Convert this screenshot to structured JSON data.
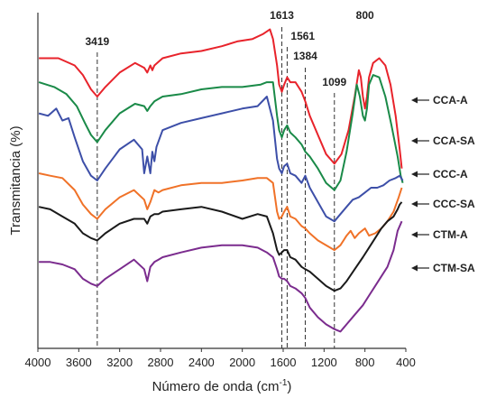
{
  "chart_data": {
    "type": "line",
    "title": "",
    "xlabel": "Número de onda (cm",
    "xlabel_sup": "-1",
    "xlabel_tail": ")",
    "ylabel": "Transmitancia (%)",
    "xlim": [
      4000,
      400
    ],
    "x_reversed": true,
    "x_ticks": [
      "4000",
      "3600",
      "3200",
      "2800",
      "2400",
      "2000",
      "1600",
      "1200",
      "800",
      "400"
    ],
    "grid": false,
    "legend_placement": "right",
    "peaks": [
      {
        "label": "3419",
        "x": 3419
      },
      {
        "label": "1613",
        "x": 1613
      },
      {
        "label": "1561",
        "x": 1561
      },
      {
        "label": "1384",
        "x": 1384
      },
      {
        "label": "1099",
        "x": 1099
      },
      {
        "label": "800",
        "x": 800
      }
    ],
    "series": [
      {
        "name": "CCA-A",
        "color": "#e8232b",
        "x": [
          3990,
          3800,
          3640,
          3560,
          3480,
          3419,
          3340,
          3200,
          3050,
          2960,
          2930,
          2900,
          2880,
          2860,
          2780,
          2600,
          2400,
          2200,
          2050,
          1900,
          1800,
          1730,
          1700,
          1660,
          1640,
          1613,
          1590,
          1561,
          1530,
          1480,
          1420,
          1384,
          1340,
          1260,
          1180,
          1099,
          1030,
          960,
          900,
          860,
          840,
          820,
          800,
          780,
          760,
          720,
          660,
          600,
          550,
          500,
          460,
          440
        ],
        "y": [
          96,
          96,
          93,
          89,
          83,
          80,
          84,
          90,
          94,
          92,
          90,
          93,
          91,
          93,
          96,
          98,
          99,
          101,
          103,
          104,
          106,
          108,
          104,
          93,
          85,
          82,
          85,
          88,
          86,
          86,
          82,
          78,
          72,
          64,
          56,
          52,
          56,
          66,
          80,
          91,
          88,
          80,
          75,
          80,
          88,
          94,
          96,
          93,
          85,
          72,
          58,
          50
        ]
      },
      {
        "name": "CCA-SA",
        "color": "#1a8a48",
        "x": [
          3990,
          3840,
          3720,
          3620,
          3540,
          3480,
          3419,
          3340,
          3200,
          3050,
          2960,
          2930,
          2900,
          2860,
          2780,
          2600,
          2400,
          2200,
          2000,
          1820,
          1760,
          1700,
          1660,
          1640,
          1613,
          1590,
          1561,
          1530,
          1480,
          1420,
          1384,
          1340,
          1260,
          1180,
          1099,
          1040,
          980,
          920,
          880,
          850,
          820,
          800,
          780,
          760,
          720,
          660,
          600,
          540,
          480,
          450,
          430
        ],
        "y": [
          86,
          84,
          81,
          76,
          69,
          64,
          61,
          66,
          73,
          77,
          76,
          74,
          76,
          78,
          80,
          81,
          83,
          84,
          84,
          85,
          86,
          86,
          72,
          66,
          63,
          66,
          68,
          65,
          63,
          60,
          57,
          55,
          50,
          44,
          41,
          45,
          57,
          73,
          85,
          80,
          72,
          70,
          75,
          85,
          89,
          88,
          80,
          68,
          55,
          47,
          44
        ]
      },
      {
        "name": "CCC-A",
        "color": "#3d4fa8",
        "x": [
          3990,
          3900,
          3820,
          3760,
          3700,
          3640,
          3560,
          3480,
          3419,
          3340,
          3200,
          3060,
          2980,
          2960,
          2930,
          2900,
          2880,
          2860,
          2840,
          2780,
          2600,
          2400,
          2200,
          2000,
          1850,
          1760,
          1700,
          1660,
          1640,
          1613,
          1590,
          1561,
          1530,
          1480,
          1420,
          1384,
          1340,
          1260,
          1180,
          1099,
          1040,
          980,
          920,
          860,
          800,
          740,
          680,
          620,
          560,
          500,
          460,
          430
        ],
        "y": [
          73,
          72,
          75,
          70,
          71,
          63,
          53,
          47,
          45,
          50,
          58,
          62,
          58,
          48,
          55,
          48,
          57,
          53,
          59,
          66,
          69,
          71,
          73,
          75,
          76,
          80,
          70,
          54,
          50,
          48,
          51,
          52,
          48,
          47,
          44,
          47,
          42,
          36,
          30,
          28,
          31,
          34,
          37,
          38,
          40,
          42,
          42,
          43,
          45,
          46,
          47,
          45
        ]
      },
      {
        "name": "CCC-SA",
        "color": "#f07228",
        "x": [
          3990,
          3880,
          3760,
          3640,
          3560,
          3480,
          3419,
          3340,
          3200,
          3060,
          2960,
          2930,
          2900,
          2860,
          2820,
          2780,
          2600,
          2400,
          2200,
          2000,
          1850,
          1760,
          1700,
          1660,
          1640,
          1613,
          1590,
          1561,
          1530,
          1480,
          1420,
          1384,
          1340,
          1260,
          1180,
          1099,
          1040,
          980,
          940,
          900,
          860,
          800,
          760,
          700,
          640,
          580,
          520,
          470,
          440
        ],
        "y": [
          48,
          47,
          46,
          41,
          35,
          31,
          29,
          33,
          38,
          41,
          37,
          33,
          36,
          41,
          40,
          41,
          43,
          44,
          44,
          45,
          46,
          46,
          44,
          32,
          29,
          30,
          32,
          34,
          30,
          29,
          26,
          25,
          23,
          20,
          18,
          16,
          18,
          22,
          24,
          21,
          23,
          25,
          22,
          23,
          25,
          28,
          32,
          38,
          42
        ]
      },
      {
        "name": "CTM-A",
        "color": "#1a1a1a",
        "x": [
          3990,
          3880,
          3760,
          3640,
          3560,
          3480,
          3419,
          3340,
          3200,
          3060,
          2960,
          2930,
          2900,
          2860,
          2820,
          2780,
          2600,
          2400,
          2200,
          2000,
          1850,
          1760,
          1700,
          1660,
          1640,
          1613,
          1590,
          1561,
          1530,
          1480,
          1420,
          1384,
          1340,
          1260,
          1180,
          1099,
          1040,
          980,
          900,
          820,
          760,
          700,
          640,
          580,
          520,
          480,
          460,
          440
        ],
        "y": [
          34,
          33,
          30,
          27,
          23,
          21,
          20,
          23,
          27,
          29,
          29,
          27,
          30,
          31,
          31,
          32,
          33,
          34,
          32,
          29,
          31,
          30,
          23,
          16,
          14,
          15,
          16,
          16,
          13,
          12,
          9,
          8,
          7,
          4,
          1,
          -1,
          0,
          3,
          8,
          13,
          17,
          21,
          25,
          28,
          30,
          33,
          35,
          36
        ]
      },
      {
        "name": "CTM-SA",
        "color": "#7b2c8e",
        "x": [
          3990,
          3880,
          3760,
          3640,
          3560,
          3480,
          3419,
          3340,
          3200,
          3060,
          2960,
          2930,
          2900,
          2860,
          2820,
          2780,
          2600,
          2400,
          2200,
          2000,
          1850,
          1760,
          1700,
          1660,
          1640,
          1613,
          1590,
          1561,
          1530,
          1480,
          1420,
          1384,
          1340,
          1260,
          1180,
          1099,
          1040,
          980,
          900,
          820,
          760,
          700,
          640,
          580,
          520,
          480,
          440
        ],
        "y": [
          11,
          11,
          10,
          8,
          4,
          2,
          1,
          4,
          8,
          12,
          8,
          3,
          9,
          11,
          12,
          13,
          15,
          17,
          18,
          18,
          17,
          15,
          13,
          8,
          5,
          4,
          4,
          3,
          1,
          0,
          -2,
          -4,
          -8,
          -12,
          -15,
          -17,
          -18,
          -15,
          -11,
          -7,
          -3,
          1,
          5,
          9,
          16,
          24,
          28
        ]
      }
    ]
  }
}
